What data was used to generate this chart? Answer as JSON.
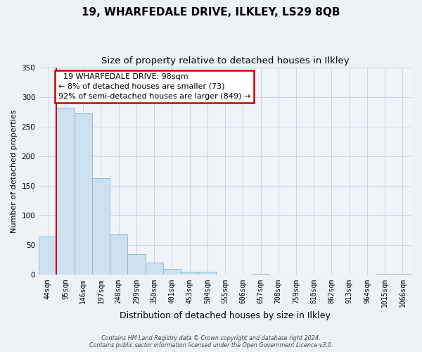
{
  "title": "19, WHARFEDALE DRIVE, ILKLEY, LS29 8QB",
  "subtitle": "Size of property relative to detached houses in Ilkley",
  "xlabel": "Distribution of detached houses by size in Ilkley",
  "ylabel": "Number of detached properties",
  "bin_labels": [
    "44sqm",
    "95sqm",
    "146sqm",
    "197sqm",
    "248sqm",
    "299sqm",
    "350sqm",
    "401sqm",
    "453sqm",
    "504sqm",
    "555sqm",
    "606sqm",
    "657sqm",
    "708sqm",
    "759sqm",
    "810sqm",
    "862sqm",
    "913sqm",
    "964sqm",
    "1015sqm",
    "1066sqm"
  ],
  "bar_heights": [
    65,
    282,
    272,
    163,
    68,
    35,
    21,
    10,
    5,
    5,
    0,
    0,
    2,
    0,
    0,
    0,
    0,
    0,
    0,
    2,
    2
  ],
  "bar_color": "#cce0f0",
  "bar_edge_color": "#8ab4d4",
  "ylim": [
    0,
    350
  ],
  "yticks": [
    0,
    50,
    100,
    150,
    200,
    250,
    300,
    350
  ],
  "vline_color": "#cc0000",
  "vline_bin_index": 1,
  "annotation_title": "19 WHARFEDALE DRIVE: 98sqm",
  "annotation_line1": "← 8% of detached houses are smaller (73)",
  "annotation_line2": "92% of semi-detached houses are larger (849) →",
  "annotation_box_color": "#cc0000",
  "footer_line1": "Contains HM Land Registry data © Crown copyright and database right 2024.",
  "footer_line2": "Contains public sector information licensed under the Open Government Licence v3.0.",
  "fig_bg_color": "#eef2f7",
  "plot_bg_color": "#f0f4f9",
  "grid_color": "#c8d8e8",
  "title_fontsize": 11,
  "subtitle_fontsize": 9.5,
  "ylabel_fontsize": 8,
  "xlabel_fontsize": 9,
  "tick_fontsize": 7,
  "annotation_fontsize": 8
}
